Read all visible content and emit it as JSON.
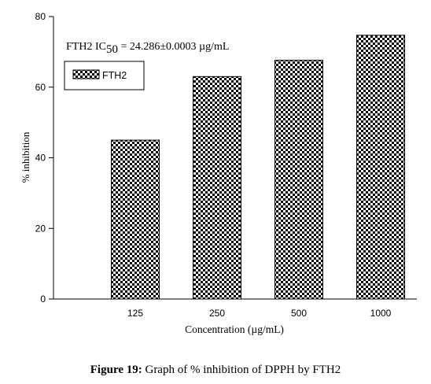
{
  "chart_data": {
    "type": "bar",
    "categories": [
      "125",
      "250",
      "500",
      "1000"
    ],
    "values": [
      45,
      63,
      67.6,
      74.7
    ],
    "series": [
      {
        "name": "FTH2",
        "values": [
          45,
          63,
          67.6,
          74.7
        ]
      }
    ],
    "xlabel": "Concentration (µg/mL)",
    "ylabel": "% inhibition",
    "ylim": [
      0,
      80
    ],
    "yticks": [
      "0",
      "20",
      "40",
      "60",
      "80"
    ],
    "annotation": {
      "prefix": "FTH2 IC",
      "subscript": "50",
      "suffix": " = 24.286±0.0003 µg/mL"
    },
    "legend": {
      "label": "FTH2",
      "placement": "top-left"
    },
    "bar_pattern": "checkerboard",
    "grid": false
  },
  "caption": {
    "label": "Figure 19:",
    "text": " Graph of % inhibition of DPPH by FTH2"
  }
}
